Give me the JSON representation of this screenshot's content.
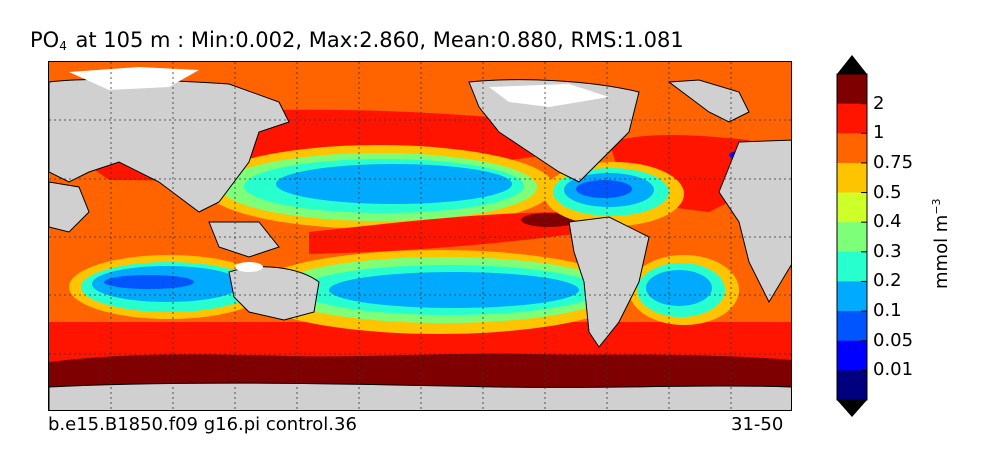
{
  "title": {
    "variable": "PO",
    "subscript": "4",
    "rest": " at 105 m : Min:0.002, Max:2.860, Mean:0.880, RMS:1.081"
  },
  "caption": {
    "left": "b.e15.B1850.f09 g16.pi control.36",
    "right": "31-50"
  },
  "colorbar": {
    "unit_base": "mmol m",
    "unit_exponent": "−3",
    "ticks": [
      "0.01",
      "0.05",
      "0.1",
      "0.2",
      "0.3",
      "0.4",
      "0.5",
      "0.75",
      "1",
      "2"
    ],
    "colors": [
      "#00007f",
      "#0000ff",
      "#0055ff",
      "#00aaff",
      "#28ffcf",
      "#7dff7a",
      "#cfff28",
      "#ffc400",
      "#ff6400",
      "#ff1400",
      "#7f0000"
    ],
    "land_color": "#d0d0d0",
    "ice_color": "#ffffff"
  },
  "map": {
    "projection": "cylindrical equidistant",
    "grid": true
  }
}
